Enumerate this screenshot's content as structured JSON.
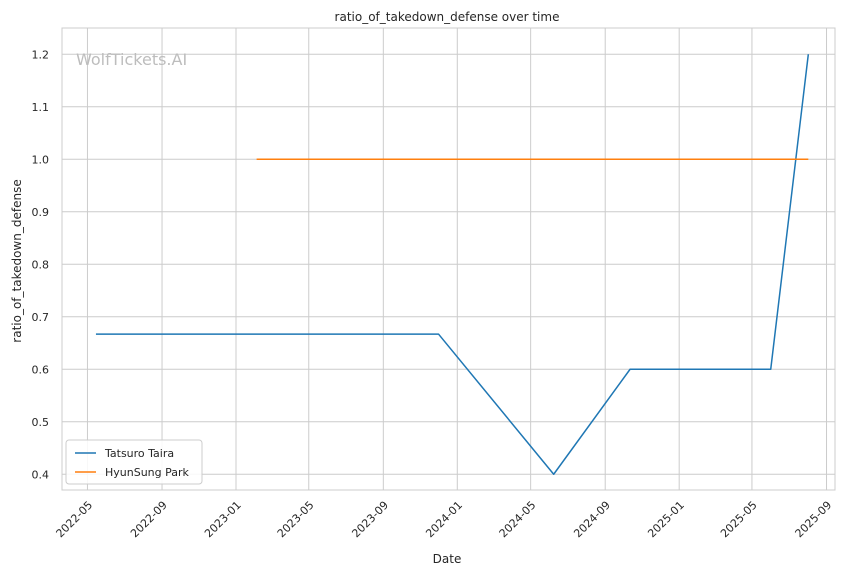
{
  "chart_data": {
    "type": "line",
    "title": "ratio_of_takedown_defense over time",
    "xlabel": "Date",
    "ylabel": "ratio_of_takedown_defense",
    "watermark": "WolfTickets.AI",
    "x_axis_kind": "date",
    "xlim": [
      "2022-03-20",
      "2025-09-15"
    ],
    "ylim": [
      0.37,
      1.25
    ],
    "x_ticks": [
      "2022-05",
      "2022-09",
      "2023-01",
      "2023-05",
      "2023-09",
      "2024-01",
      "2024-05",
      "2024-09",
      "2025-01",
      "2025-05",
      "2025-09"
    ],
    "y_ticks": [
      "0.4",
      "0.5",
      "0.6",
      "0.7",
      "0.8",
      "0.9",
      "1.0",
      "1.1",
      "1.2"
    ],
    "grid": true,
    "legend_position": "bottom-left",
    "series": [
      {
        "name": "Tatsuro Taira",
        "color": "#1f77b4",
        "points": [
          {
            "x": "2022-05-15",
            "y": 0.667
          },
          {
            "x": "2023-12-01",
            "y": 0.667
          },
          {
            "x": "2024-06-08",
            "y": 0.4
          },
          {
            "x": "2024-10-12",
            "y": 0.6
          },
          {
            "x": "2025-06-01",
            "y": 0.6
          },
          {
            "x": "2025-08-02",
            "y": 1.2
          }
        ]
      },
      {
        "name": "HyunSung Park",
        "color": "#ff7f0e",
        "points": [
          {
            "x": "2023-02-04",
            "y": 1.0
          },
          {
            "x": "2025-08-02",
            "y": 1.0
          }
        ]
      }
    ]
  }
}
